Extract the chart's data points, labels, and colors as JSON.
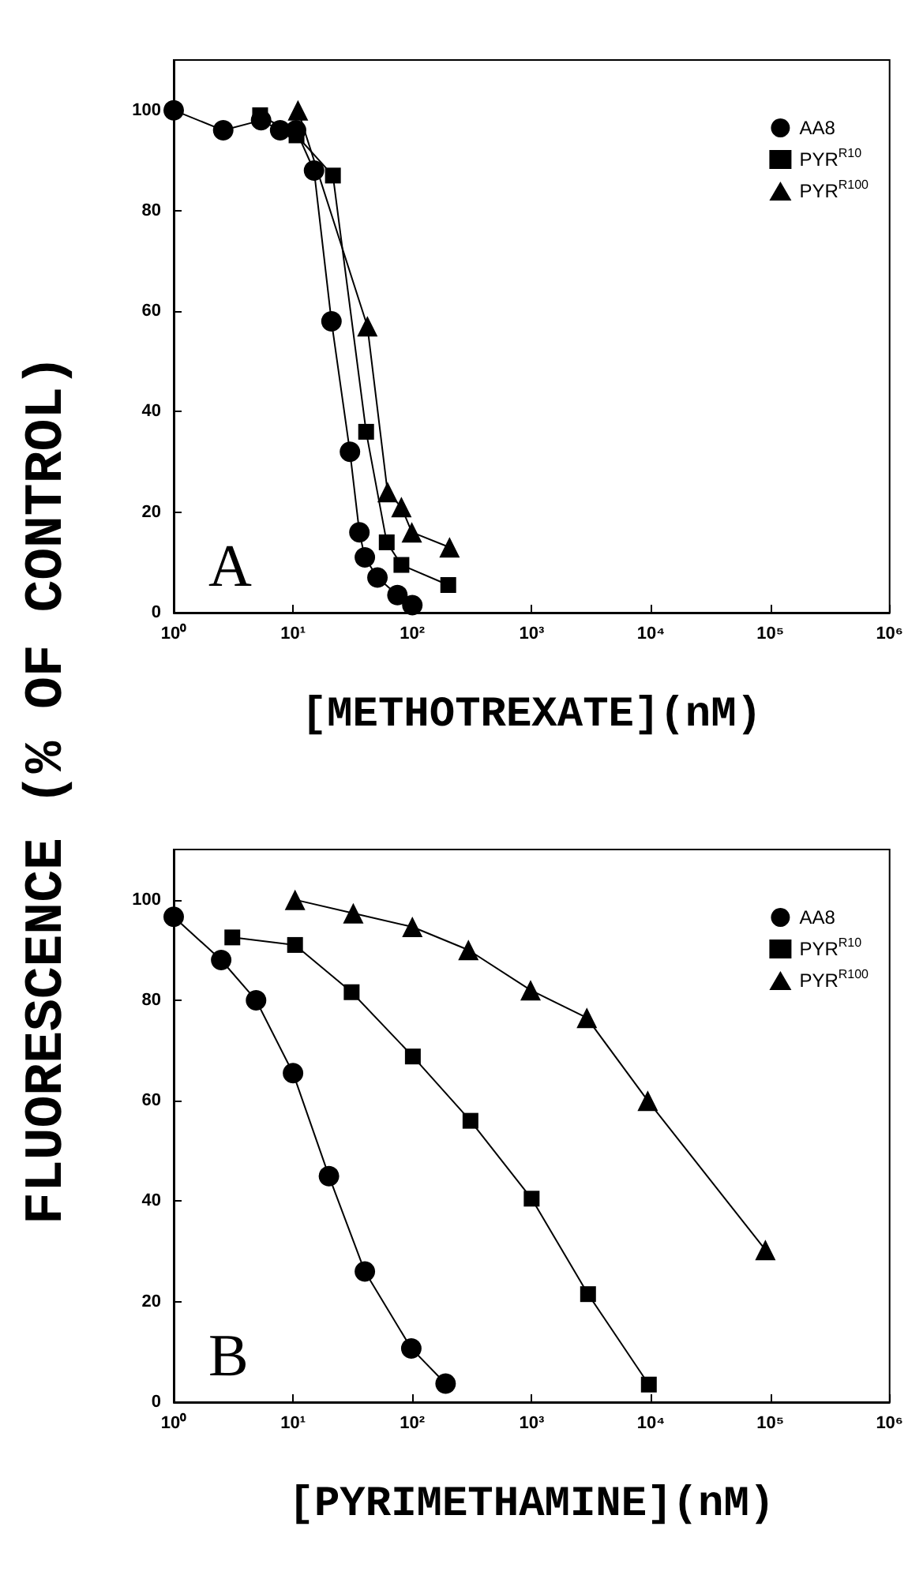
{
  "chart_data": [
    {
      "type": "line",
      "ylabel": "FLUORESCENCE (% OF CONTROL)",
      "xlabel": "[METHOTREXATE](nM)",
      "annotations": [
        "A"
      ],
      "log": "x",
      "xlim": [
        1,
        1000000
      ],
      "xticks": [
        {
          "value": 1,
          "label": "10⁰"
        },
        {
          "value": 10,
          "label": "10¹"
        },
        {
          "value": 100,
          "label": "10²"
        },
        {
          "value": 1000,
          "label": "10³"
        },
        {
          "value": 10000,
          "label": "10⁴"
        },
        {
          "value": 100000,
          "label": "10⁵"
        },
        {
          "value": 1000000,
          "label": "10⁶"
        }
      ],
      "ylim": [
        0,
        110
      ],
      "yticks": [
        0,
        20,
        40,
        60,
        80,
        100
      ],
      "grid": false,
      "legend": "top right",
      "line_style": "solid",
      "series": [
        {
          "name": "AA8",
          "color": "#000000",
          "marker": "circle",
          "x": [
            1,
            2.6,
            5.4,
            7.8,
            10.6,
            15,
            21,
            30,
            36,
            40,
            51,
            75,
            100
          ],
          "values": [
            100,
            96,
            98,
            96,
            96,
            88,
            58,
            32,
            16,
            11,
            7,
            3.5,
            1.5
          ]
        },
        {
          "name": "PYR$^{R10}$",
          "color": "#000000",
          "marker": "square",
          "x": [
            5.3,
            10.7,
            21.6,
            41,
            61,
            81,
            200
          ],
          "values": [
            99,
            95,
            87,
            36,
            14,
            9.5,
            5.5
          ]
        },
        {
          "name": "PYR$^{R100}$",
          "color": "#000000",
          "marker": "triangle",
          "x": [
            11,
            42,
            62,
            81,
            99,
            205
          ],
          "values": [
            100,
            57,
            24,
            21,
            16,
            13
          ]
        }
      ]
    },
    {
      "type": "line",
      "xlabel": "[PYRIMETHAMINE](nM)",
      "annotations": [
        "B"
      ],
      "log": "x",
      "xlim": [
        1,
        1000000
      ],
      "xticks": [
        {
          "value": 1,
          "label": "10⁰"
        },
        {
          "value": 10,
          "label": "10¹"
        },
        {
          "value": 100,
          "label": "10²"
        },
        {
          "value": 1000,
          "label": "10³"
        },
        {
          "value": 10000,
          "label": "10⁴"
        },
        {
          "value": 100000,
          "label": "10⁵"
        },
        {
          "value": 1000000,
          "label": "10⁶"
        }
      ],
      "ylim": [
        0,
        110
      ],
      "yticks": [
        0,
        20,
        40,
        60,
        80,
        100
      ],
      "grid": false,
      "legend": "top right",
      "line_style": "solid",
      "series": [
        {
          "name": "AA8",
          "color": "#000000",
          "marker": "circle",
          "x": [
            1,
            2.5,
            4.9,
            10,
            20,
            40,
            98,
            190
          ],
          "values": [
            96.6,
            88,
            80,
            65.5,
            45,
            26,
            10.7,
            3.7
          ]
        },
        {
          "name": "PYR$^{R10}$",
          "color": "#000000",
          "marker": "square",
          "x": [
            3.1,
            10.4,
            31,
            101,
            307,
            1000,
            2970,
            9600
          ],
          "values": [
            92.5,
            91,
            81.6,
            68.8,
            56,
            40.5,
            21.5,
            3.5
          ]
        },
        {
          "name": "PYR$^{R100}$",
          "color": "#000000",
          "marker": "triangle",
          "x": [
            10.4,
            32,
            100,
            295,
            980,
            2900,
            9400,
            91000
          ],
          "values": [
            100,
            97.3,
            94.6,
            90,
            82,
            76.5,
            60,
            30.3
          ]
        }
      ]
    }
  ]
}
